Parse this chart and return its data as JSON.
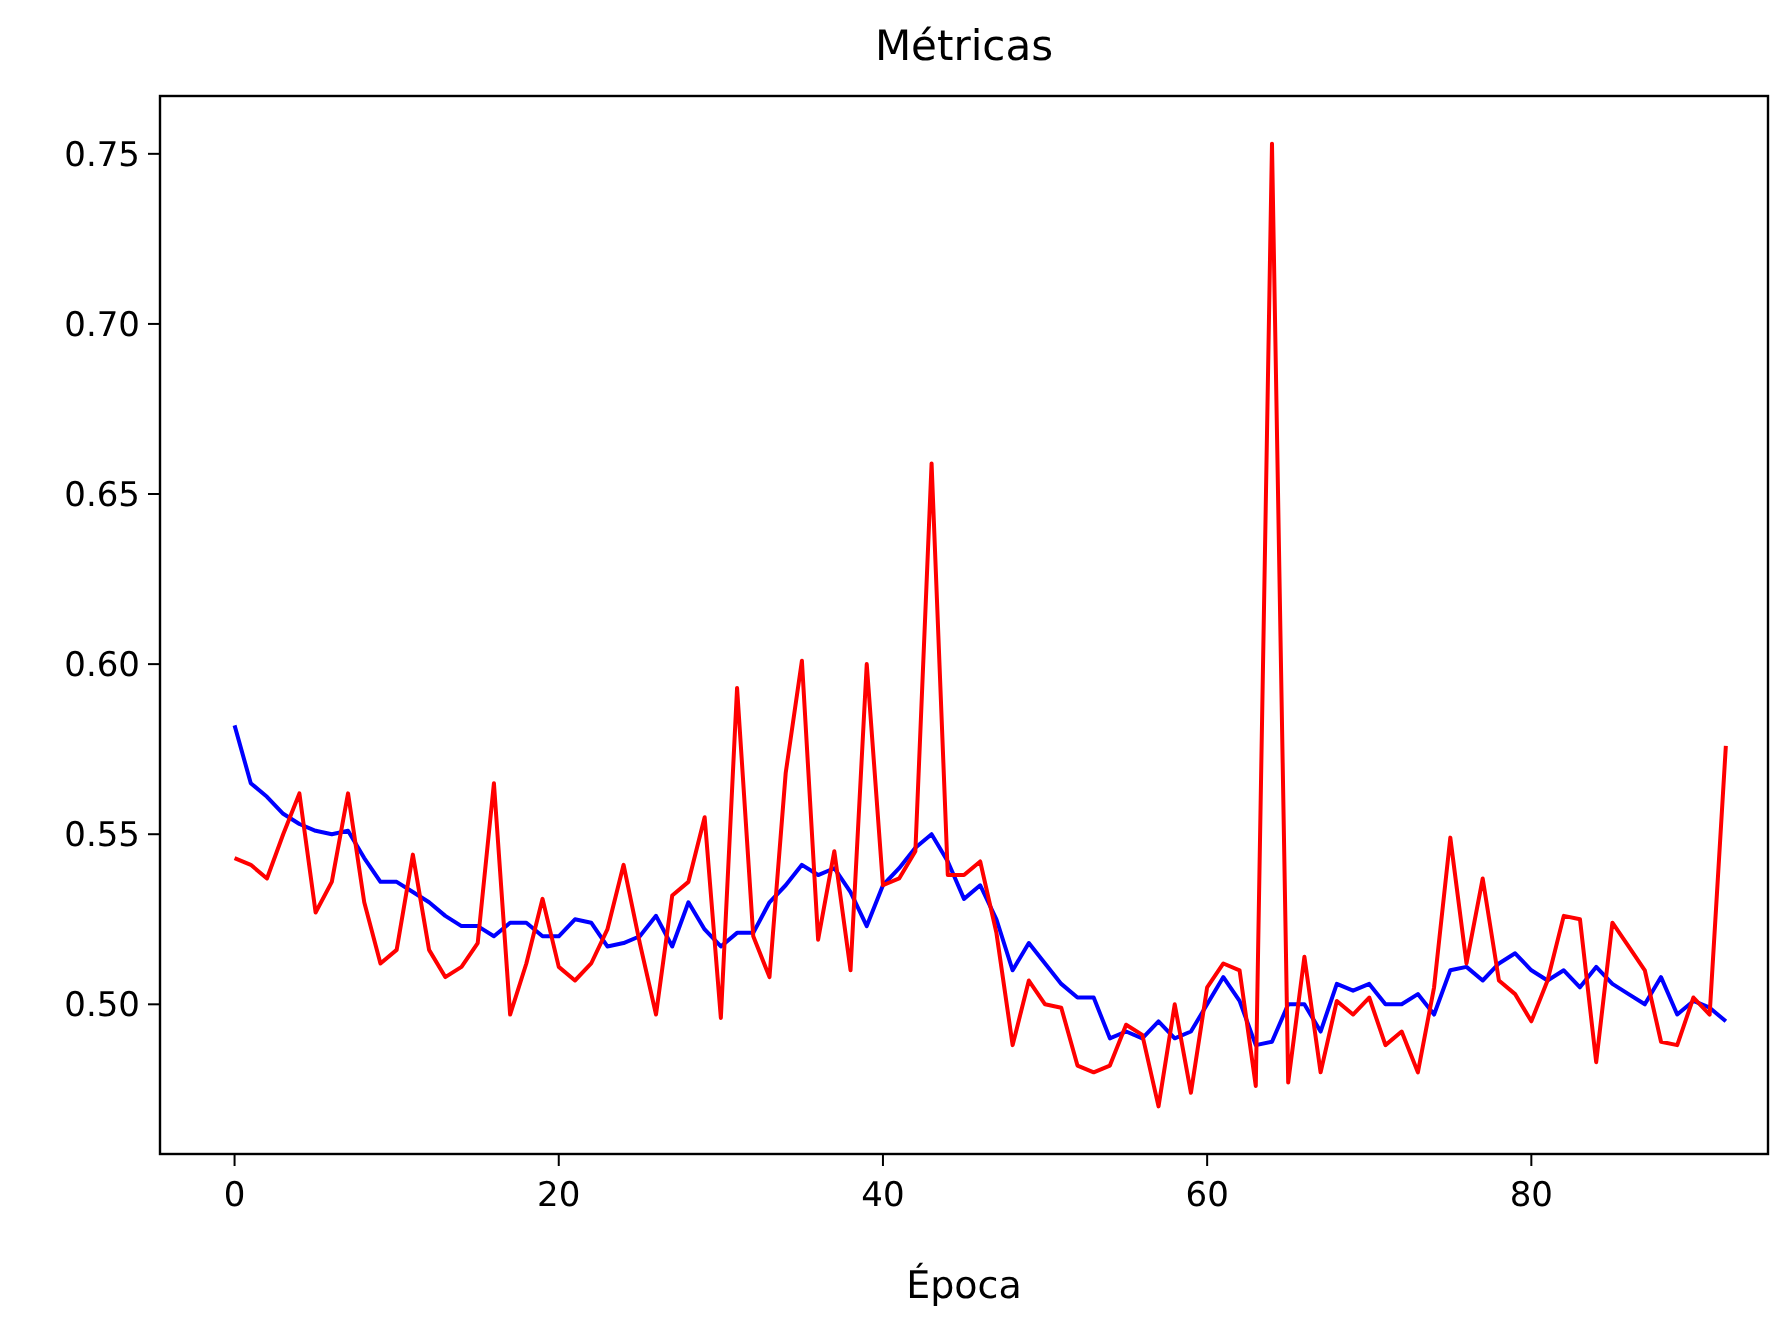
{
  "chart_data": {
    "type": "line",
    "title": "Métricas",
    "xlabel": "Época",
    "x": [
      0,
      1,
      2,
      3,
      4,
      5,
      6,
      7,
      8,
      9,
      10,
      11,
      12,
      13,
      14,
      15,
      16,
      17,
      18,
      19,
      20,
      21,
      22,
      23,
      24,
      25,
      26,
      27,
      28,
      29,
      30,
      31,
      32,
      33,
      34,
      35,
      36,
      37,
      38,
      39,
      40,
      41,
      42,
      43,
      44,
      45,
      46,
      47,
      48,
      49,
      50,
      51,
      52,
      53,
      54,
      55,
      56,
      57,
      58,
      59,
      60,
      61,
      62,
      63,
      64,
      65,
      66,
      67,
      68,
      69,
      70,
      71,
      72,
      73,
      74,
      75,
      76,
      77,
      78,
      79,
      80,
      81,
      82,
      83,
      84,
      85,
      86,
      87,
      88,
      89,
      90,
      91,
      92
    ],
    "series": [
      {
        "color": "#0000ff",
        "values": [
          0.582,
          0.565,
          0.561,
          0.556,
          0.553,
          0.551,
          0.55,
          0.551,
          0.543,
          0.536,
          0.536,
          0.533,
          0.53,
          0.526,
          0.523,
          0.523,
          0.52,
          0.524,
          0.524,
          0.52,
          0.52,
          0.525,
          0.524,
          0.517,
          0.518,
          0.52,
          0.526,
          0.517,
          0.53,
          0.522,
          0.517,
          0.521,
          0.521,
          0.53,
          0.535,
          0.541,
          0.538,
          0.54,
          0.533,
          0.523,
          0.535,
          0.54,
          0.546,
          0.55,
          0.542,
          0.531,
          0.535,
          0.525,
          0.51,
          0.518,
          0.512,
          0.506,
          0.502,
          0.502,
          0.49,
          0.492,
          0.49,
          0.495,
          0.49,
          0.492,
          0.5,
          0.508,
          0.501,
          0.488,
          0.489,
          0.5,
          0.5,
          0.492,
          0.506,
          0.504,
          0.506,
          0.5,
          0.5,
          0.503,
          0.497,
          0.51,
          0.511,
          0.507,
          0.512,
          0.515,
          0.51,
          0.507,
          0.51,
          0.505,
          0.511,
          0.506,
          0.503,
          0.5,
          0.508,
          0.497,
          0.501,
          0.499,
          0.495
        ]
      },
      {
        "color": "#ff0000",
        "values": [
          0.543,
          0.541,
          0.537,
          0.55,
          0.562,
          0.527,
          0.536,
          0.562,
          0.53,
          0.512,
          0.516,
          0.544,
          0.516,
          0.508,
          0.511,
          0.518,
          0.565,
          0.497,
          0.512,
          0.531,
          0.511,
          0.507,
          0.512,
          0.522,
          0.541,
          0.518,
          0.497,
          0.532,
          0.536,
          0.555,
          0.496,
          0.593,
          0.52,
          0.508,
          0.568,
          0.601,
          0.519,
          0.545,
          0.51,
          0.6,
          0.535,
          0.537,
          0.545,
          0.659,
          0.538,
          0.538,
          0.542,
          0.521,
          0.488,
          0.507,
          0.5,
          0.499,
          0.482,
          0.48,
          0.482,
          0.494,
          0.491,
          0.47,
          0.5,
          0.474,
          0.505,
          0.512,
          0.51,
          0.476,
          0.753,
          0.477,
          0.514,
          0.48,
          0.501,
          0.497,
          0.502,
          0.488,
          0.492,
          0.48,
          0.505,
          0.549,
          0.512,
          0.537,
          0.507,
          0.503,
          0.495,
          0.507,
          0.526,
          0.525,
          0.483,
          0.524,
          0.517,
          0.51,
          0.489,
          0.488,
          0.502,
          0.497,
          0.576
        ]
      }
    ],
    "xlim": [
      -4.6,
      94.6
    ],
    "ylim": [
      0.456,
      0.767
    ],
    "xticks": [
      0,
      20,
      40,
      60,
      80
    ],
    "yticks": [
      {
        "value": 0.5,
        "label": "0.50"
      },
      {
        "value": 0.55,
        "label": "0.55"
      },
      {
        "value": 0.6,
        "label": "0.60"
      },
      {
        "value": 0.65,
        "label": "0.65"
      },
      {
        "value": 0.7,
        "label": "0.70"
      },
      {
        "value": 0.75,
        "label": "0.75"
      }
    ],
    "grid": false
  }
}
